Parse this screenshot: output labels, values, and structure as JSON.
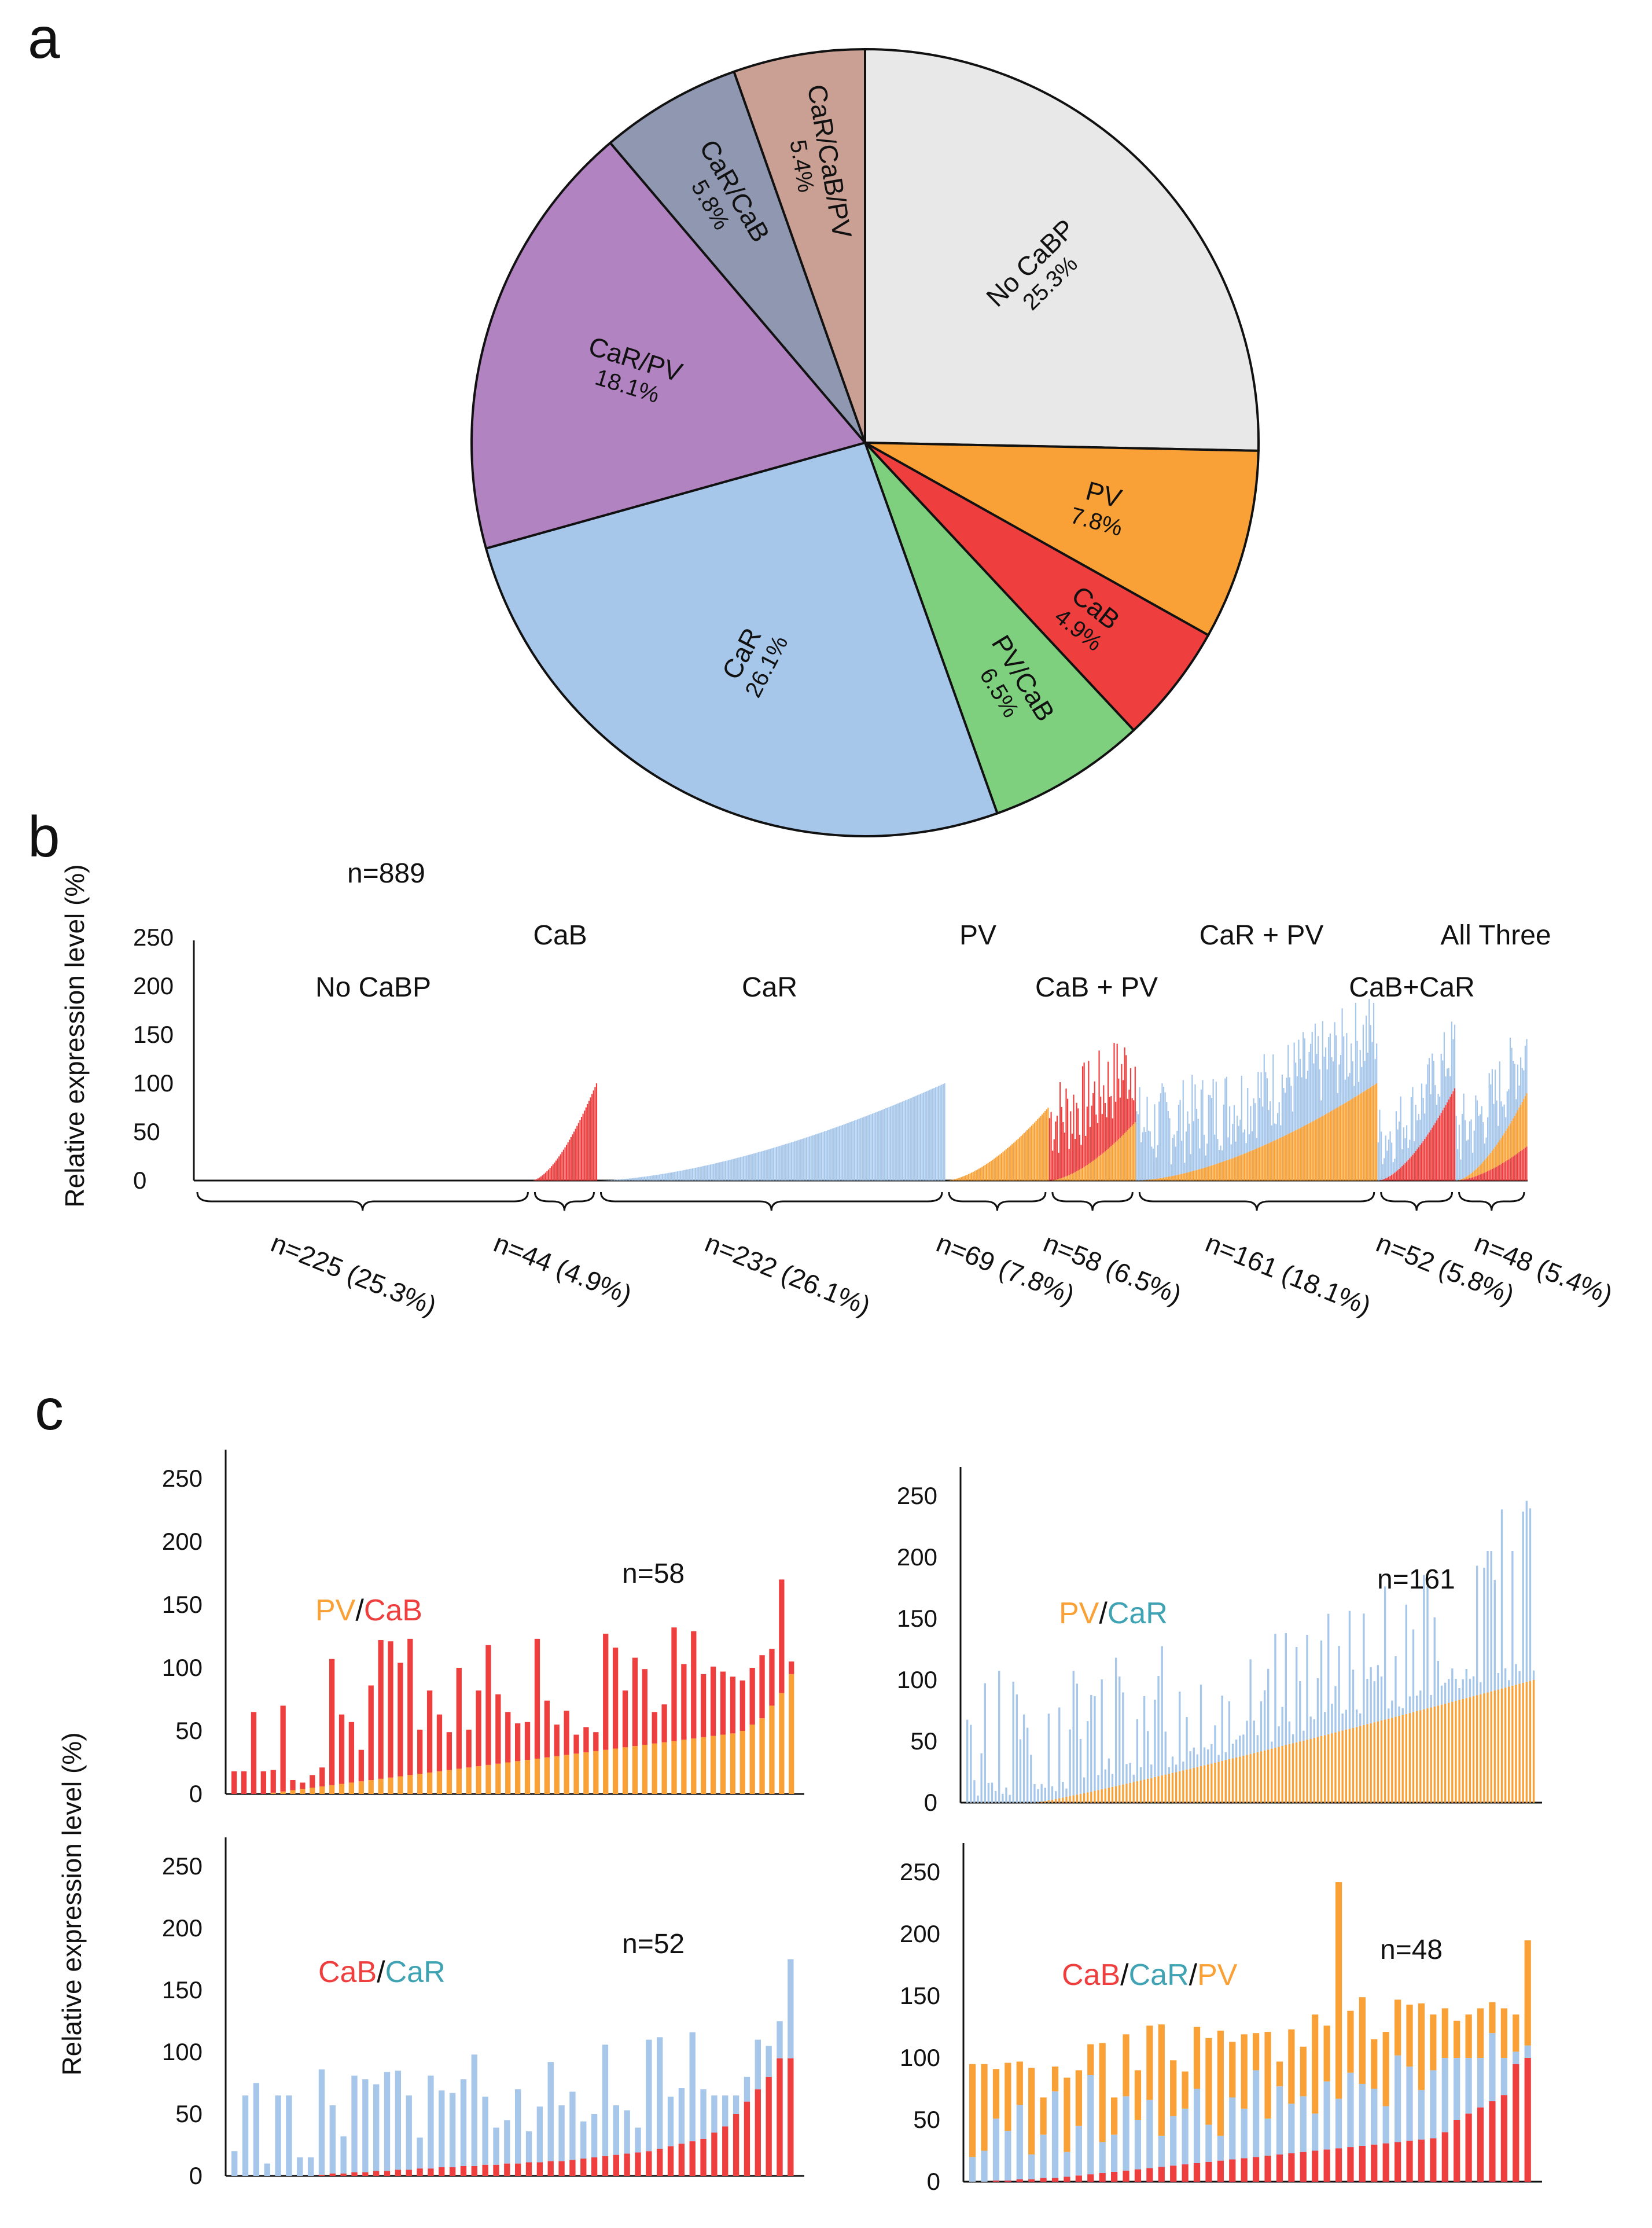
{
  "colors": {
    "none": "#e8e8e8",
    "pv": "#f9a136",
    "cab": "#ef3e3e",
    "car": "#a6c6ea",
    "pv_cab": "#7ed07e",
    "car_pv": "#b183c0",
    "car_cab": "#8f97b1",
    "all": "#caa094",
    "legend_car": "#3fa3b3"
  },
  "panels": {
    "a": "a",
    "b": "b",
    "c": "c"
  },
  "chart_data": [
    {
      "id": "a",
      "type": "pie",
      "slices": [
        {
          "name": "No CaBP",
          "pct_label": "25.3%",
          "value": 25.3,
          "color_key": "none"
        },
        {
          "name": "PV",
          "pct_label": "7.8%",
          "value": 7.8,
          "color_key": "pv"
        },
        {
          "name": "CaB",
          "pct_label": "4.9%",
          "value": 4.9,
          "color_key": "cab"
        },
        {
          "name": "PV/CaB",
          "pct_label": "6.5%",
          "value": 6.5,
          "color_key": "pv_cab"
        },
        {
          "name": "CaR",
          "pct_label": "26.1%",
          "value": 26.1,
          "color_key": "car"
        },
        {
          "name": "CaR/PV",
          "pct_label": "18.1%",
          "value": 18.1,
          "color_key": "car_pv"
        },
        {
          "name": "CaR/CaB",
          "pct_label": "5.8%",
          "value": 5.8,
          "color_key": "car_cab"
        },
        {
          "name": "CaR/CaB/PV",
          "pct_label": "5.4%",
          "value": 5.4,
          "color_key": "all"
        }
      ]
    },
    {
      "id": "b",
      "type": "bar",
      "title": "n=889",
      "ylabel": "Relative expression level (%)",
      "ylim": [
        0,
        250
      ],
      "yticks": [
        "0",
        "50",
        "100",
        "150",
        "200",
        "250"
      ],
      "groups": [
        {
          "label": "No CaBP",
          "n_label": "n=225 (25.3%)",
          "n": 225,
          "pattern": "none",
          "max": 0
        },
        {
          "label": "CaB",
          "n_label": "n=44 (4.9%)",
          "n": 44,
          "pattern": "cab",
          "max": 100
        },
        {
          "label": "CaR",
          "n_label": "n=232 (26.1%)",
          "n": 232,
          "pattern": "car",
          "max": 100
        },
        {
          "label": "PV",
          "n_label": "n=69 (7.8%)",
          "n": 69,
          "pattern": "pv",
          "max": 75
        },
        {
          "label": "CaB + PV",
          "n_label": "n=58 (6.5%)",
          "n": 58,
          "pattern": "pv_cab",
          "max": 100
        },
        {
          "label": "CaR + PV",
          "n_label": "n=161 (18.1%)",
          "n": 161,
          "pattern": "pv_car",
          "max": 100
        },
        {
          "label": "CaB+CaR",
          "n_label": "n=52 (5.8%)",
          "n": 52,
          "pattern": "cab_car",
          "max": 95
        },
        {
          "label": "All Three",
          "n_label": "n=48 (5.4%)",
          "n": 48,
          "pattern": "all",
          "max": 100
        }
      ]
    },
    {
      "id": "c1",
      "type": "bar",
      "stacked": true,
      "n_label": "n=58",
      "legend": [
        {
          "text": "PV",
          "color_key": "pv"
        },
        {
          "text": "/",
          "color_key": "text"
        },
        {
          "text": "CaB",
          "color_key": "cab"
        }
      ],
      "ylim": [
        0,
        250
      ],
      "yticks": [
        "0",
        "50",
        "100",
        "150",
        "200",
        "250"
      ],
      "series": [
        {
          "name": "PV",
          "color_key": "pv",
          "values": [
            0,
            0,
            0,
            0,
            1,
            2,
            3,
            4,
            5,
            6,
            7,
            8,
            9,
            10,
            11,
            12,
            13,
            14,
            15,
            16,
            17,
            18,
            19,
            20,
            21,
            22,
            23,
            24,
            25,
            26,
            27,
            28,
            29,
            30,
            31,
            32,
            33,
            34,
            35,
            36,
            37,
            38,
            39,
            40,
            41,
            42,
            43,
            44,
            45,
            46,
            47,
            48,
            50,
            55,
            60,
            70,
            80,
            95
          ]
        },
        {
          "name": "CaB",
          "color_key": "cab",
          "values": [
            18,
            18,
            65,
            18,
            18,
            68,
            8,
            5,
            10,
            15,
            100,
            55,
            48,
            25,
            75,
            110,
            108,
            90,
            108,
            35,
            65,
            45,
            30,
            80,
            30,
            60,
            95,
            55,
            40,
            30,
            30,
            95,
            45,
            25,
            35,
            15,
            20,
            15,
            92,
            80,
            45,
            70,
            60,
            25,
            30,
            90,
            60,
            85,
            50,
            55,
            50,
            45,
            40,
            45,
            50,
            45,
            90,
            10
          ]
        }
      ]
    },
    {
      "id": "c2",
      "type": "bar",
      "stacked": true,
      "n_label": "n=161",
      "legend": [
        {
          "text": "PV",
          "color_key": "pv"
        },
        {
          "text": "/",
          "color_key": "text"
        },
        {
          "text": "CaR",
          "color_key": "legend_car"
        }
      ],
      "ylim": [
        0,
        250
      ],
      "yticks": [
        "0",
        "50",
        "100",
        "150",
        "200",
        "250"
      ],
      "series": [
        {
          "name": "PV",
          "color_key": "pv",
          "values_range": [
            0,
            100
          ],
          "n": 161
        },
        {
          "name": "CaR",
          "color_key": "car",
          "note": "variable 10-150 above PV"
        }
      ]
    },
    {
      "id": "c3",
      "type": "bar",
      "stacked": true,
      "n_label": "n=52",
      "legend": [
        {
          "text": "CaB",
          "color_key": "cab"
        },
        {
          "text": "/",
          "color_key": "text"
        },
        {
          "text": "CaR",
          "color_key": "legend_car"
        }
      ],
      "ylim": [
        0,
        250
      ],
      "yticks": [
        "0",
        "50",
        "100",
        "150",
        "200",
        "250"
      ],
      "series": [
        {
          "name": "CaB",
          "color_key": "cab",
          "values": [
            0,
            0,
            0,
            0,
            0,
            0,
            0,
            0,
            1,
            2,
            2,
            3,
            3,
            4,
            4,
            5,
            5,
            6,
            6,
            7,
            7,
            8,
            8,
            9,
            9,
            10,
            10,
            11,
            11,
            12,
            12,
            13,
            14,
            15,
            16,
            17,
            18,
            19,
            20,
            22,
            24,
            26,
            28,
            30,
            35,
            40,
            50,
            60,
            70,
            80,
            95,
            95
          ]
        },
        {
          "name": "CaR",
          "color_key": "car",
          "values": [
            20,
            65,
            75,
            10,
            65,
            65,
            15,
            15,
            85,
            55,
            30,
            78,
            75,
            70,
            80,
            80,
            60,
            25,
            75,
            62,
            60,
            70,
            90,
            55,
            30,
            35,
            60,
            25,
            45,
            80,
            45,
            55,
            30,
            35,
            90,
            40,
            35,
            20,
            90,
            90,
            40,
            45,
            88,
            40,
            30,
            25,
            15,
            20,
            40,
            25,
            30,
            80
          ]
        }
      ]
    },
    {
      "id": "c4",
      "type": "bar",
      "stacked": true,
      "n_label": "n=48",
      "legend": [
        {
          "text": "CaB",
          "color_key": "cab"
        },
        {
          "text": "/",
          "color_key": "text"
        },
        {
          "text": "CaR",
          "color_key": "legend_car"
        },
        {
          "text": "/",
          "color_key": "text"
        },
        {
          "text": "PV",
          "color_key": "pv"
        }
      ],
      "ylim": [
        0,
        250
      ],
      "yticks": [
        "0",
        "50",
        "100",
        "150",
        "200",
        "250"
      ],
      "series": [
        {
          "name": "CaB",
          "color_key": "cab",
          "values": [
            0,
            0,
            1,
            1,
            2,
            2,
            3,
            3,
            4,
            5,
            6,
            7,
            8,
            9,
            10,
            11,
            12,
            13,
            14,
            15,
            16,
            17,
            18,
            19,
            20,
            21,
            22,
            23,
            24,
            25,
            26,
            27,
            28,
            29,
            30,
            31,
            32,
            33,
            34,
            35,
            40,
            50,
            55,
            60,
            65,
            70,
            95,
            100
          ]
        },
        {
          "name": "CaR",
          "color_key": "car",
          "values": [
            20,
            25,
            50,
            40,
            60,
            20,
            35,
            70,
            20,
            40,
            80,
            25,
            30,
            60,
            40,
            55,
            25,
            40,
            45,
            60,
            30,
            20,
            50,
            40,
            70,
            30,
            55,
            40,
            45,
            30,
            55,
            40,
            60,
            50,
            45,
            30,
            70,
            60,
            40,
            55,
            60,
            50,
            45,
            40,
            55,
            30,
            10,
            10
          ]
        },
        {
          "name": "PV",
          "color_key": "pv",
          "values": [
            75,
            70,
            40,
            55,
            35,
            70,
            30,
            20,
            60,
            45,
            25,
            80,
            30,
            50,
            40,
            60,
            90,
            45,
            30,
            50,
            70,
            85,
            45,
            60,
            30,
            70,
            20,
            60,
            40,
            80,
            45,
            175,
            50,
            70,
            40,
            60,
            45,
            50,
            70,
            45,
            40,
            30,
            35,
            40,
            25,
            40,
            30,
            85
          ]
        }
      ]
    }
  ]
}
